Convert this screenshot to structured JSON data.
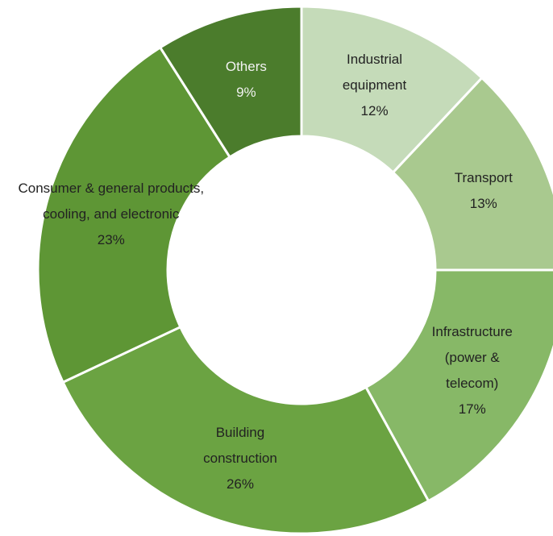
{
  "chart_data": {
    "type": "donut",
    "categories": [
      "Industrial equipment",
      "Transport",
      "Infrastructure (power & telecom)",
      "Building construction",
      "Consumer & general products, cooling, and electronic",
      "Others"
    ],
    "values": [
      12,
      13,
      17,
      26,
      23,
      9
    ],
    "value_labels": [
      "12%",
      "13%",
      "17%",
      "26%",
      "23%",
      "9%"
    ],
    "colors": [
      "#c5dbb9",
      "#a9c98f",
      "#87b867",
      "#6ba342",
      "#5e9635",
      "#4b7c2c"
    ],
    "label_colors": [
      "#222222",
      "#222222",
      "#222222",
      "#222222",
      "#222222",
      "#f2f2f2"
    ]
  }
}
